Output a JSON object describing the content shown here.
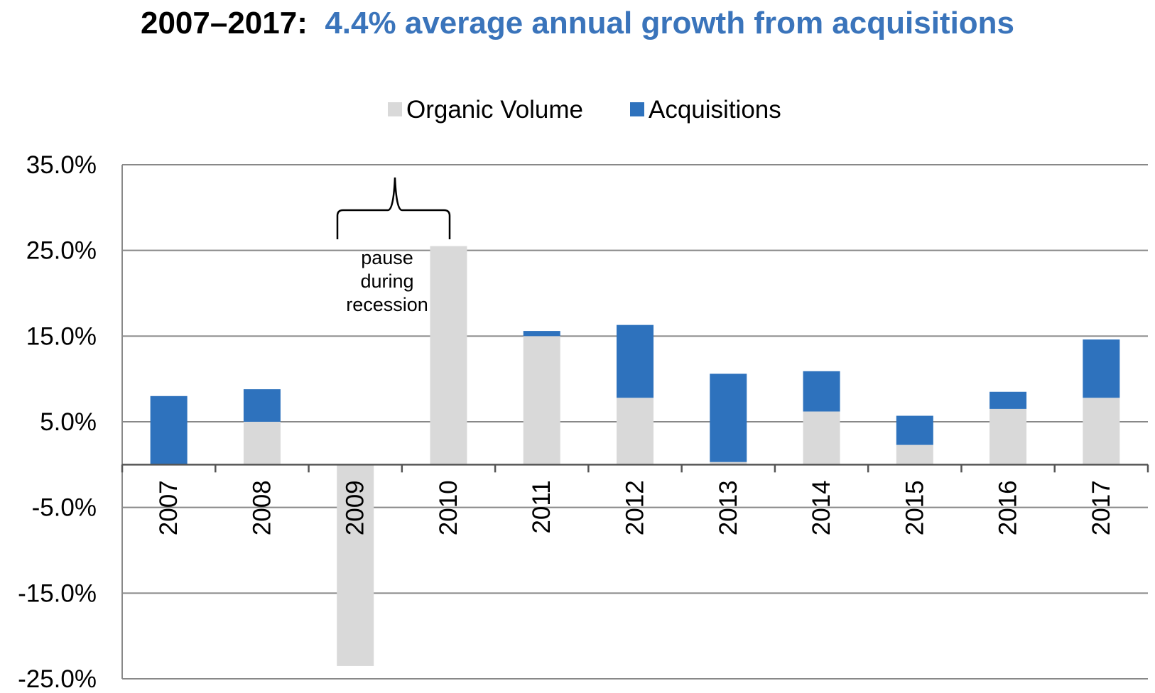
{
  "title": {
    "prefix": "2007–2017:",
    "highlight": "4.4% average annual growth from acquisitions"
  },
  "colors": {
    "organic": "#d9d9d9",
    "acquisitions": "#2e72bd",
    "gridline": "#888888",
    "title_highlight": "#3a74bb"
  },
  "chart_data": {
    "type": "bar",
    "stacked": true,
    "categories": [
      "2007",
      "2008",
      "2009",
      "2010",
      "2011",
      "2012",
      "2013",
      "2014",
      "2015",
      "2016",
      "2017"
    ],
    "series": [
      {
        "name": "Organic Volume",
        "values": [
          0.0,
          5.0,
          -23.5,
          25.5,
          15.0,
          7.8,
          0.3,
          6.2,
          2.3,
          6.5,
          7.8
        ]
      },
      {
        "name": "Acquisitions",
        "values": [
          8.0,
          3.8,
          0.0,
          0.0,
          0.6,
          8.5,
          10.3,
          4.7,
          3.4,
          2.0,
          6.8
        ]
      }
    ],
    "ylim": [
      -25,
      35
    ],
    "yticks": [
      35,
      25,
      15,
      5,
      -5,
      -15,
      -25
    ],
    "ytick_labels": [
      "35.0%",
      "25.0%",
      "15.0%",
      "5.0%",
      "-5.0%",
      "-15.0%",
      "-25.0%"
    ],
    "legend_position": "top-center",
    "grid": true,
    "annotation": {
      "lines": [
        "pause",
        "during",
        "recession"
      ],
      "span": [
        "2009",
        "2010"
      ]
    }
  }
}
